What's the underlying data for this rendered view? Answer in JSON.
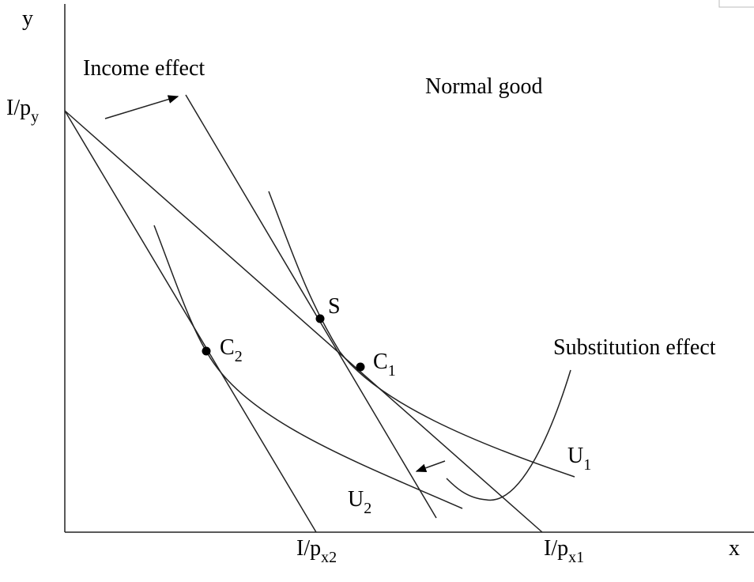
{
  "axes": {
    "y": "y",
    "x": "x"
  },
  "intercepts": [
    {
      "main": "I/p",
      "sub": "y"
    },
    {
      "main": "I/p",
      "sub": "x2"
    },
    {
      "main": "I/p",
      "sub": "x1"
    }
  ],
  "annotations": {
    "income_effect": "Income effect",
    "normal_good": "Normal good",
    "substitution_effect": "Substitution effect"
  },
  "points": [
    {
      "main": "S"
    },
    {
      "main": "C",
      "sub": "1"
    },
    {
      "main": "C",
      "sub": "2"
    }
  ],
  "curves": [
    {
      "main": "U",
      "sub": "1"
    },
    {
      "main": "U",
      "sub": "2"
    }
  ]
}
